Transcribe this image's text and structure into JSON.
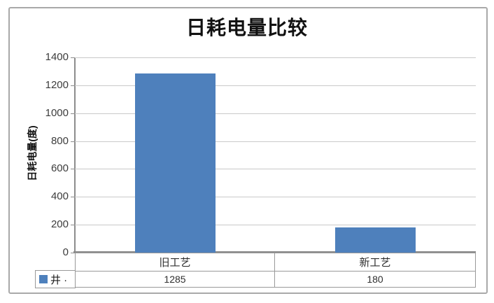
{
  "chart_data": {
    "type": "bar",
    "title": "日耗电量比较",
    "categories": [
      "旧工艺",
      "新工艺"
    ],
    "series": [
      {
        "name": "井 ·",
        "values": [
          1285,
          180
        ]
      }
    ],
    "ylabel": "日耗电量(度)",
    "xlabel": "",
    "ylim": [
      0,
      1400
    ],
    "yticks": [
      0,
      200,
      400,
      600,
      800,
      1000,
      1200,
      1400
    ],
    "grid": true,
    "legend_position": "bottom-left",
    "data_table_shown": true
  },
  "table": {
    "category_row": [
      "旧工艺",
      "新工艺"
    ],
    "value_row": [
      "1285",
      "180"
    ]
  },
  "colors": {
    "bar": "#4E80BC",
    "grid": "#c9c9c9",
    "axis": "#8c8c8c",
    "frame_border": "#a9a9a9",
    "table_border": "#999999",
    "title_text": "#111111",
    "tick_text": "#3c3c3c"
  }
}
